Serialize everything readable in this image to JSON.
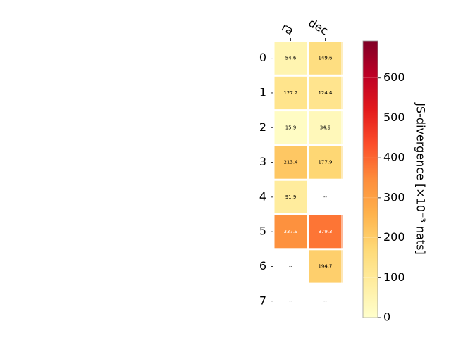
{
  "chart_data": {
    "type": "heatmap",
    "title": "",
    "xlabel": "",
    "ylabel": "",
    "columns": [
      "ra",
      "dec"
    ],
    "rows": [
      "0",
      "1",
      "2",
      "3",
      "4",
      "5",
      "6",
      "7"
    ],
    "values": [
      [
        54.6,
        149.6
      ],
      [
        127.2,
        124.4
      ],
      [
        15.9,
        34.9
      ],
      [
        213.4,
        177.9
      ],
      [
        91.9,
        null
      ],
      [
        337.9,
        379.3
      ],
      [
        null,
        194.7
      ],
      [
        null,
        null
      ]
    ],
    "labels": [
      [
        "54.6",
        "149.6"
      ],
      [
        "127.2",
        "124.4"
      ],
      [
        "15.9",
        "34.9"
      ],
      [
        "213.4",
        "177.9"
      ],
      [
        "91.9",
        "--"
      ],
      [
        "337.9",
        "379.3"
      ],
      [
        "--",
        "194.7"
      ],
      [
        "--",
        "--"
      ]
    ],
    "colorbar": {
      "label": "JS-divergence [×10⁻³ nats]",
      "range": [
        0,
        693
      ],
      "ticks": [
        0,
        100,
        200,
        300,
        400,
        500,
        600
      ],
      "tick_labels": [
        "0",
        "100",
        "200",
        "300",
        "400",
        "500",
        "600"
      ],
      "colormap": "YlOrRd",
      "colors": [
        "#ffffcc",
        "#ffeda0",
        "#fed976",
        "#feb24c",
        "#fd8d3c",
        "#fc4e2a",
        "#e31a1c",
        "#bd0026",
        "#800026"
      ]
    }
  }
}
